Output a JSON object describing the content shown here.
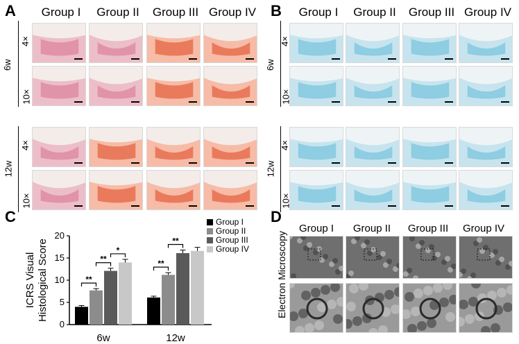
{
  "panels": {
    "a": {
      "letter": "A"
    },
    "b": {
      "letter": "B"
    },
    "c": {
      "letter": "C"
    },
    "d": {
      "letter": "D"
    }
  },
  "groups": [
    "Group I",
    "Group II",
    "Group III",
    "Group IV"
  ],
  "time_labels": [
    "6w",
    "12w"
  ],
  "magnifications": [
    "4×",
    "10×"
  ],
  "d_side_label": "Electron Microscopy",
  "colors": {
    "group1": "#000000",
    "group2": "#8c8c8c",
    "group3": "#5a5a5a",
    "group4": "#c8c8c8",
    "he_pink": "#d9708e",
    "safranin_red": "#e0431f",
    "alcian_blue": "#5fb9d8"
  },
  "chart_data": {
    "type": "bar",
    "title": "",
    "xlabel": "",
    "ylabel": "ICRS Visual Histological Score",
    "ylabel_lines": [
      "ICRS Visual",
      "Histological Score"
    ],
    "categories": [
      "6w",
      "12w"
    ],
    "ylim": [
      0,
      20
    ],
    "yticks": [
      0,
      5,
      10,
      15,
      20
    ],
    "series": [
      {
        "name": "Group I",
        "values": [
          4.0,
          6.1
        ],
        "errors": [
          0.3,
          0.3
        ]
      },
      {
        "name": "Group II",
        "values": [
          7.7,
          11.2
        ],
        "errors": [
          0.4,
          0.5
        ]
      },
      {
        "name": "Group III",
        "values": [
          12.1,
          16.1
        ],
        "errors": [
          0.6,
          0.7
        ]
      },
      {
        "name": "Group IV",
        "values": [
          14.0,
          16.6
        ],
        "errors": [
          0.7,
          0.8
        ]
      }
    ],
    "significance": [
      {
        "category": "6w",
        "from": "Group I",
        "to": "Group II",
        "label": "**"
      },
      {
        "category": "6w",
        "from": "Group II",
        "to": "Group III",
        "label": "**"
      },
      {
        "category": "6w",
        "from": "Group III",
        "to": "Group IV",
        "label": "*"
      },
      {
        "category": "12w",
        "from": "Group I",
        "to": "Group II",
        "label": "**"
      },
      {
        "category": "12w",
        "from": "Group II",
        "to": "Group III",
        "label": "**"
      }
    ],
    "legend_position": "top-right"
  }
}
